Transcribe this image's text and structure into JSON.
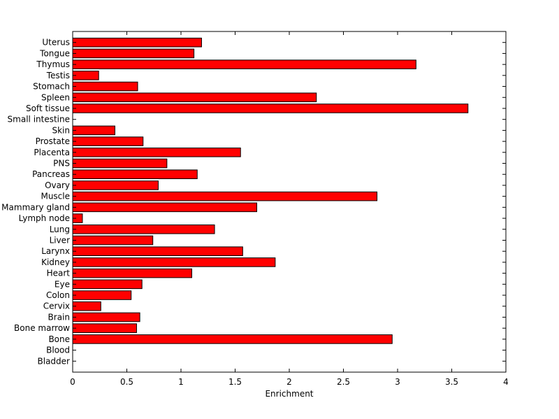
{
  "chart_data": {
    "type": "bar",
    "orientation": "horizontal",
    "categories": [
      "Bladder",
      "Blood",
      "Bone",
      "Bone marrow",
      "Brain",
      "Cervix",
      "Colon",
      "Eye",
      "Heart",
      "Kidney",
      "Larynx",
      "Liver",
      "Lung",
      "Lymph node",
      "Mammary gland",
      "Muscle",
      "Ovary",
      "Pancreas",
      "PNS",
      "Placenta",
      "Prostate",
      "Skin",
      "Small intestine",
      "Soft tissue",
      "Spleen",
      "Stomach",
      "Testis",
      "Thymus",
      "Tongue",
      "Uterus"
    ],
    "values": [
      0,
      0,
      2.95,
      0.59,
      0.62,
      0.26,
      0.54,
      0.64,
      1.1,
      1.87,
      1.57,
      0.74,
      1.31,
      0.09,
      1.7,
      2.81,
      0.79,
      1.15,
      0.87,
      1.55,
      0.65,
      0.39,
      0,
      3.65,
      2.25,
      0.6,
      0.24,
      3.17,
      1.12,
      1.19
    ],
    "title": "",
    "xlabel": "Enrichment",
    "ylabel": "",
    "xlim": [
      0,
      4
    ],
    "xticks": [
      "0",
      "0.5",
      "1",
      "1.5",
      "2",
      "2.5",
      "3",
      "3.5",
      "4"
    ],
    "grid": false,
    "bar_color": "#ff0000",
    "edge_color": "#000000"
  }
}
